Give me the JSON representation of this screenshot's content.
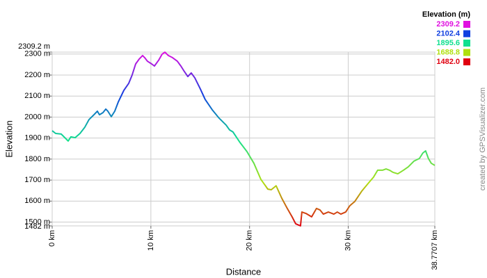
{
  "chart_data": {
    "type": "line",
    "y_label": "Elevation",
    "x_label": "Distance",
    "legend_title": "Elevation (m)",
    "credit": "created by GPSVisualizer.com",
    "xlim": [
      0,
      38.7707
    ],
    "ylim": [
      1482,
      2309.2
    ],
    "xticks": [
      {
        "value": 0,
        "label": "0 km"
      },
      {
        "value": 10,
        "label": "10 km"
      },
      {
        "value": 20,
        "label": "20 km"
      },
      {
        "value": 30,
        "label": "30 km"
      },
      {
        "value": 38.7707,
        "label": "38.7707 km"
      }
    ],
    "yticks": [
      {
        "value": 1482,
        "label": "1482 m"
      },
      {
        "value": 1500,
        "label": "1500 m"
      },
      {
        "value": 1600,
        "label": "1600 m"
      },
      {
        "value": 1700,
        "label": "1700 m"
      },
      {
        "value": 1800,
        "label": "1800 m"
      },
      {
        "value": 1900,
        "label": "1900 m"
      },
      {
        "value": 2000,
        "label": "2000 m"
      },
      {
        "value": 2100,
        "label": "2100 m"
      },
      {
        "value": 2200,
        "label": "2200 m"
      },
      {
        "value": 2300,
        "label": "2300 m"
      },
      {
        "value": 2309.2,
        "label": "2309.2 m"
      }
    ],
    "grid": true,
    "color_scale": [
      {
        "value": 2309.2,
        "label": "2309.2",
        "color": "#e010e0"
      },
      {
        "value": 2102.4,
        "label": "2102.4",
        "color": "#1040e0"
      },
      {
        "value": 1895.6,
        "label": "1895.6",
        "color": "#10e090"
      },
      {
        "value": 1688.8,
        "label": "1688.8",
        "color": "#b0e010"
      },
      {
        "value": 1482,
        "label": "1482.0",
        "color": "#e00010"
      }
    ],
    "x": [
      0,
      0.35,
      0.92,
      1.41,
      1.62,
      1.9,
      2.33,
      2.82,
      3.31,
      3.73,
      4.23,
      4.58,
      4.79,
      5.14,
      5.43,
      5.64,
      5.99,
      6.34,
      6.69,
      7.26,
      7.75,
      8.1,
      8.46,
      8.81,
      9.16,
      9.37,
      9.65,
      10.08,
      10.36,
      10.78,
      11.13,
      11.42,
      11.77,
      12.19,
      12.68,
      13.04,
      13.39,
      13.74,
      14.09,
      14.45,
      15.01,
      15.5,
      16.21,
      16.91,
      17.62,
      17.97,
      18.32,
      19.03,
      19.73,
      20.44,
      21.14,
      21.85,
      22.2,
      22.69,
      23.26,
      23.82,
      24.31,
      24.67,
      25.16,
      25.3,
      25.72,
      26.29,
      26.78,
      27.13,
      27.48,
      27.98,
      28.54,
      28.89,
      29.25,
      29.74,
      30.16,
      30.66,
      31.36,
      32.07,
      32.56,
      32.98,
      33.47,
      33.83,
      34.18,
      34.53,
      35.02,
      35.59,
      36.08,
      36.65,
      37.21,
      37.56,
      37.84,
      38.12,
      38.41,
      38.77
    ],
    "series": [
      {
        "name": "Elevation",
        "values": [
          1935,
          1922,
          1919,
          1896,
          1886,
          1906,
          1902,
          1922,
          1952,
          1988,
          2011,
          2028,
          2011,
          2021,
          2038,
          2028,
          2002,
          2028,
          2071,
          2127,
          2160,
          2200,
          2253,
          2276,
          2293,
          2283,
          2266,
          2253,
          2243,
          2270,
          2299,
          2309,
          2293,
          2283,
          2266,
          2243,
          2217,
          2193,
          2210,
          2187,
          2134,
          2084,
          2035,
          1995,
          1962,
          1939,
          1929,
          1879,
          1836,
          1780,
          1704,
          1657,
          1654,
          1673,
          1614,
          1565,
          1525,
          1492,
          1482,
          1548,
          1541,
          1525,
          1565,
          1558,
          1538,
          1548,
          1538,
          1548,
          1538,
          1548,
          1578,
          1598,
          1647,
          1687,
          1714,
          1747,
          1747,
          1753,
          1747,
          1737,
          1730,
          1747,
          1763,
          1790,
          1803,
          1829,
          1839,
          1803,
          1780,
          1770
        ]
      }
    ]
  }
}
